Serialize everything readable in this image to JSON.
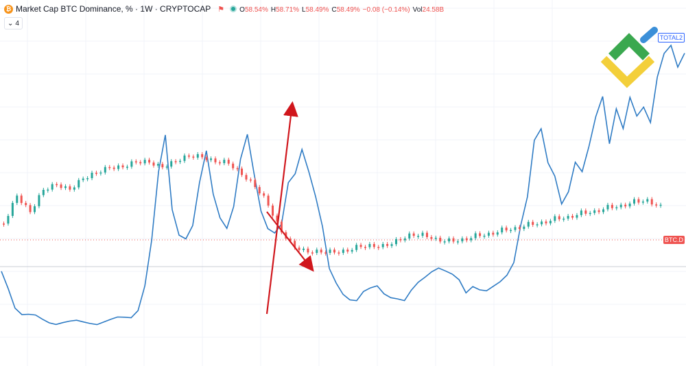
{
  "header": {
    "title": "Market Cap BTC Dominance, % · 1W · CRYPTOCAP",
    "ohlc": [
      {
        "k": "O",
        "v": "58.54%"
      },
      {
        "k": "H",
        "v": "58.71%"
      },
      {
        "k": "L",
        "v": "58.49%"
      },
      {
        "k": "C",
        "v": "58.49%"
      },
      {
        "k": "",
        "v": "−0.08 (−0.14%)"
      },
      {
        "k": "Vol",
        "v": "24.58B"
      }
    ],
    "collapse_count": "4",
    "collapse_icon": "chevron-down-icon"
  },
  "tags": {
    "total": "TOTAL2",
    "btc": "BTC.D"
  },
  "colors": {
    "blue": "#2e7bc4",
    "up": "#26a69a",
    "down": "#ef5350",
    "arrow": "#d0161c"
  },
  "chart_data": {
    "type": "line",
    "x_axis": "weekly (unlabeled)",
    "series": [
      {
        "name": "TOTAL2",
        "values": [
          60,
          46,
          28,
          20,
          18,
          17,
          15,
          14,
          13,
          13,
          12,
          12,
          12,
          13,
          13,
          14,
          14,
          15,
          16,
          18,
          26,
          48,
          88,
          150,
          185,
          118,
          96,
          92,
          102,
          140,
          170,
          132,
          112,
          102,
          120,
          162,
          185,
          150,
          118,
          102,
          96,
          102,
          140,
          150,
          175,
          155,
          130,
          100,
          60,
          48,
          40,
          36,
          34,
          40,
          42,
          45,
          40,
          38,
          36,
          32,
          40,
          48,
          55,
          62,
          65,
          60,
          55,
          50,
          40,
          48,
          45,
          42,
          44,
          48,
          56,
          70,
          105,
          130,
          180,
          190,
          160,
          150,
          125,
          135,
          160,
          150,
          175,
          205,
          225,
          180,
          210,
          190,
          220,
          205,
          215,
          200,
          240,
          260,
          268,
          250,
          265
        ]
      },
      {
        "name": "BTC.D",
        "values": [
          59,
          64,
          61,
          65,
          66,
          65,
          67,
          68,
          69,
          69,
          70,
          70,
          69,
          70,
          71,
          71,
          70,
          70,
          68,
          66,
          63,
          58,
          55,
          54,
          54,
          54,
          54,
          55,
          55,
          55,
          56,
          57,
          57,
          56,
          56,
          56,
          57,
          57,
          58,
          58,
          59,
          59,
          60,
          60,
          61,
          61,
          62,
          62,
          63,
          63,
          62
        ]
      }
    ],
    "annotations": [
      "red arrow up",
      "red arrow down"
    ]
  }
}
